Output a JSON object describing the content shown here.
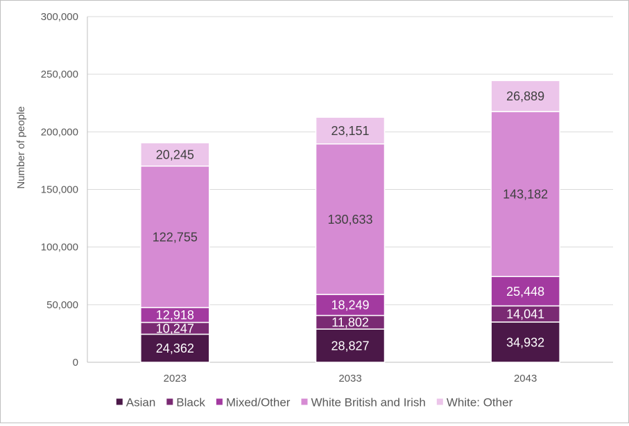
{
  "chart_data": {
    "type": "bar",
    "stacked": true,
    "title": "",
    "xlabel": "",
    "ylabel": "Number of people",
    "ylim": [
      0,
      300000
    ],
    "yticks": [
      0,
      50000,
      100000,
      150000,
      200000,
      250000,
      300000
    ],
    "ytick_labels": [
      "0",
      "50,000",
      "100,000",
      "150,000",
      "200,000",
      "250,000",
      "300,000"
    ],
    "grid": true,
    "legend_position": "bottom",
    "categories": [
      "2023",
      "2033",
      "2043"
    ],
    "series": [
      {
        "name": "Asian",
        "color": "#4b1848",
        "values": [
          24362,
          28827,
          34932
        ],
        "labels": [
          "24,362",
          "28,827",
          "34,932"
        ]
      },
      {
        "name": "Black",
        "color": "#7a2a73",
        "values": [
          10247,
          11802,
          14041
        ],
        "labels": [
          "10,247",
          "11,802",
          "14,041"
        ]
      },
      {
        "name": "Mixed/Other",
        "color": "#a33aa0",
        "values": [
          12918,
          18249,
          25448
        ],
        "labels": [
          "12,918",
          "18,249",
          "25,448"
        ]
      },
      {
        "name": "White British and Irish",
        "color": "#d68bd3",
        "values": [
          122755,
          130633,
          143182
        ],
        "labels": [
          "122,755",
          "130,633",
          "143,182"
        ]
      },
      {
        "name": "White: Other",
        "color": "#ecc5ea",
        "values": [
          20245,
          23151,
          26889
        ],
        "labels": [
          "20,245",
          "23,151",
          "26,889"
        ]
      }
    ]
  }
}
